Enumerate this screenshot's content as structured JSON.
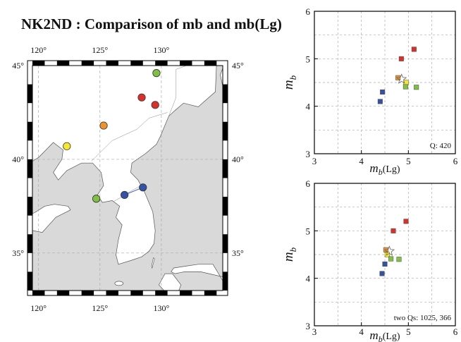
{
  "title": "NK2ND : Comparison of mb and mb(Lg)",
  "colors": {
    "land": "#ffffff",
    "sea": "#d9d9d9",
    "grid": "#aaaaaa",
    "red": "#d9302a",
    "orange": "#f0922c",
    "yellow": "#f7e92a",
    "green": "#7fc241",
    "blue": "#3352a8"
  },
  "map": {
    "lon_range": [
      119.5,
      135
    ],
    "lat_range": [
      33,
      45
    ],
    "top_lon_ticks": [
      "120°",
      "125°",
      "130°"
    ],
    "bottom_lon_ticks": [
      "120°",
      "125°",
      "130°"
    ],
    "left_lat_ticks": [
      "45°",
      "40°",
      "35°"
    ],
    "right_lat_ticks": [
      "45°",
      "40°",
      "35°"
    ],
    "stations": [
      {
        "lon": 129.6,
        "lat": 44.6,
        "color": "green"
      },
      {
        "lon": 128.4,
        "lat": 43.3,
        "color": "red"
      },
      {
        "lon": 129.5,
        "lat": 42.9,
        "color": "red"
      },
      {
        "lon": 125.3,
        "lat": 41.8,
        "color": "orange"
      },
      {
        "lon": 122.3,
        "lat": 40.7,
        "color": "yellow"
      },
      {
        "lon": 124.7,
        "lat": 37.9,
        "color": "green"
      },
      {
        "lon": 127.0,
        "lat": 38.1,
        "color": "blue"
      },
      {
        "lon": 128.5,
        "lat": 38.5,
        "color": "blue"
      }
    ]
  },
  "chart_data": [
    {
      "type": "scatter",
      "xlabel": "m_b(Lg)",
      "ylabel": "m_b",
      "xlim": [
        3,
        6
      ],
      "ylim": [
        3,
        6
      ],
      "x_ticks": [
        "3",
        "4",
        "5",
        "6"
      ],
      "y_ticks": [
        "3",
        "4",
        "5",
        "6"
      ],
      "grid": true,
      "annotation": "Q: 420",
      "points": [
        {
          "x": 4.85,
          "y": 5.0,
          "color": "red"
        },
        {
          "x": 5.12,
          "y": 5.2,
          "color": "red"
        },
        {
          "x": 4.78,
          "y": 4.6,
          "color": "orange"
        },
        {
          "x": 4.95,
          "y": 4.5,
          "color": "yellow"
        },
        {
          "x": 4.94,
          "y": 4.41,
          "color": "green"
        },
        {
          "x": 5.17,
          "y": 4.4,
          "color": "green"
        },
        {
          "x": 4.45,
          "y": 4.3,
          "color": "blue"
        },
        {
          "x": 4.4,
          "y": 4.1,
          "color": "blue"
        }
      ]
    },
    {
      "type": "scatter",
      "xlabel": "m_b(Lg)",
      "ylabel": "m_b",
      "xlim": [
        3,
        6
      ],
      "ylim": [
        3,
        6
      ],
      "x_ticks": [
        "3",
        "4",
        "5",
        "6"
      ],
      "y_ticks": [
        "3",
        "4",
        "5",
        "6"
      ],
      "grid": true,
      "annotation": "two Qs: 1025, 366",
      "points": [
        {
          "x": 4.68,
          "y": 5.0,
          "color": "red"
        },
        {
          "x": 4.95,
          "y": 5.2,
          "color": "red"
        },
        {
          "x": 4.52,
          "y": 4.6,
          "color": "orange"
        },
        {
          "x": 4.55,
          "y": 4.5,
          "color": "yellow"
        },
        {
          "x": 4.63,
          "y": 4.41,
          "color": "green"
        },
        {
          "x": 4.8,
          "y": 4.4,
          "color": "green"
        },
        {
          "x": 4.5,
          "y": 4.3,
          "color": "blue"
        },
        {
          "x": 4.44,
          "y": 4.1,
          "color": "blue"
        }
      ]
    }
  ]
}
